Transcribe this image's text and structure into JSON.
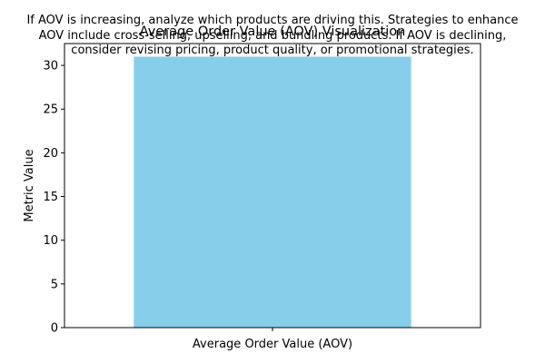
{
  "chart_data": {
    "type": "bar",
    "title": "Average Order Value (AOV) Visualization",
    "annotation": [
      "If AOV is increasing, analyze which products are driving this. Strategies to enhance",
      "AOV include cross-selling, upselling, and bundling products. If AOV is declining,",
      "consider revising pricing, product quality, or promotional strategies."
    ],
    "categories": [
      "Average Order Value (AOV)"
    ],
    "values": [
      31
    ],
    "xlabel": "",
    "ylabel": "Metric Value",
    "ylim": [
      0,
      32.5
    ],
    "yticks": [
      0,
      5,
      10,
      15,
      20,
      25,
      30
    ],
    "bar_color": "#87ceeb",
    "grid": false
  }
}
